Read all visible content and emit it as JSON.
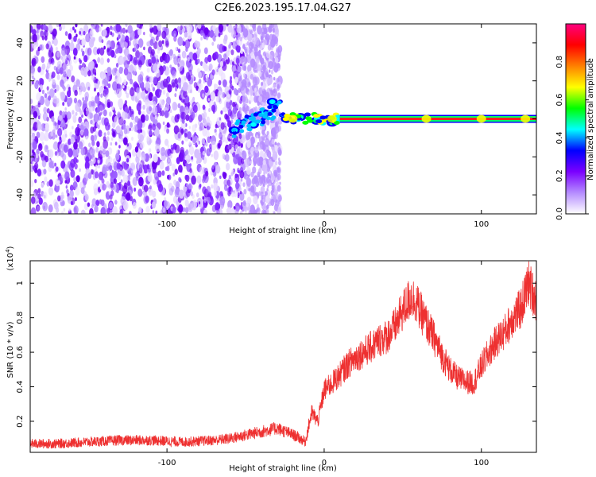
{
  "title": "C2E6.2023.195.17.04.G27",
  "chart_data": [
    {
      "type": "heatmap",
      "xlabel": "Height of straight line (km)",
      "ylabel": "Frequency (Hz)",
      "xlim": [
        -187,
        135
      ],
      "ylim": [
        -50,
        50
      ],
      "x_ticks": [
        -100,
        0,
        100
      ],
      "y_ticks": [
        -40,
        -20,
        0,
        20,
        40
      ],
      "colorbar": {
        "label": "Normalized spectral amplitude",
        "range": [
          0.0,
          1.0
        ],
        "ticks": [
          0.0,
          0.2,
          0.4,
          0.6,
          0.8
        ],
        "colors": [
          "#ffffff",
          "#b58cff",
          "#7a00ff",
          "#0000ff",
          "#00ffff",
          "#00ff00",
          "#ffff00",
          "#ff8000",
          "#ff0000",
          "#ff0080"
        ]
      },
      "features": {
        "noise_region_x": [
          -187,
          -28
        ],
        "signal_line_x": [
          10,
          135
        ],
        "signal_frequency_hz": 0,
        "transition_points": [
          {
            "x": -57,
            "y": -6
          },
          {
            "x": -45,
            "y": -3
          },
          {
            "x": -38,
            "y": 3
          },
          {
            "x": -33,
            "y": 9
          },
          {
            "x": -24,
            "y": 0
          },
          {
            "x": -15,
            "y": 1
          },
          {
            "x": -5,
            "y": -1
          },
          {
            "x": 5,
            "y": -2
          }
        ]
      }
    },
    {
      "type": "line",
      "xlabel": "Height of straight line (km)",
      "ylabel": "SNR (10 * v/v)",
      "y_multiplier": "(x10",
      "y_multiplier_exp": "4",
      "y_multiplier_close": ")",
      "xlim": [
        -187,
        135
      ],
      "ylim": [
        0.02,
        1.13
      ],
      "x_ticks": [
        -100,
        0,
        100
      ],
      "y_ticks": [
        0.2,
        0.4,
        0.6,
        0.8,
        1
      ],
      "series": [
        {
          "color": "#ee3030",
          "x": [
            -187,
            -170,
            -150,
            -130,
            -110,
            -90,
            -70,
            -60,
            -50,
            -40,
            -30,
            -22,
            -17,
            -12,
            -8,
            -4,
            0,
            5,
            10,
            15,
            20,
            25,
            30,
            35,
            40,
            45,
            50,
            55,
            58,
            62,
            66,
            70,
            75,
            80,
            85,
            90,
            95,
            100,
            105,
            110,
            115,
            120,
            125,
            130,
            135
          ],
          "values": [
            0.07,
            0.07,
            0.08,
            0.09,
            0.09,
            0.08,
            0.09,
            0.1,
            0.12,
            0.14,
            0.16,
            0.13,
            0.11,
            0.08,
            0.25,
            0.2,
            0.38,
            0.42,
            0.47,
            0.53,
            0.57,
            0.6,
            0.63,
            0.67,
            0.69,
            0.75,
            0.84,
            0.92,
            0.9,
            0.82,
            0.75,
            0.68,
            0.58,
            0.5,
            0.45,
            0.43,
            0.42,
            0.52,
            0.6,
            0.67,
            0.72,
            0.8,
            0.85,
            1.0,
            0.9
          ]
        }
      ]
    }
  ]
}
